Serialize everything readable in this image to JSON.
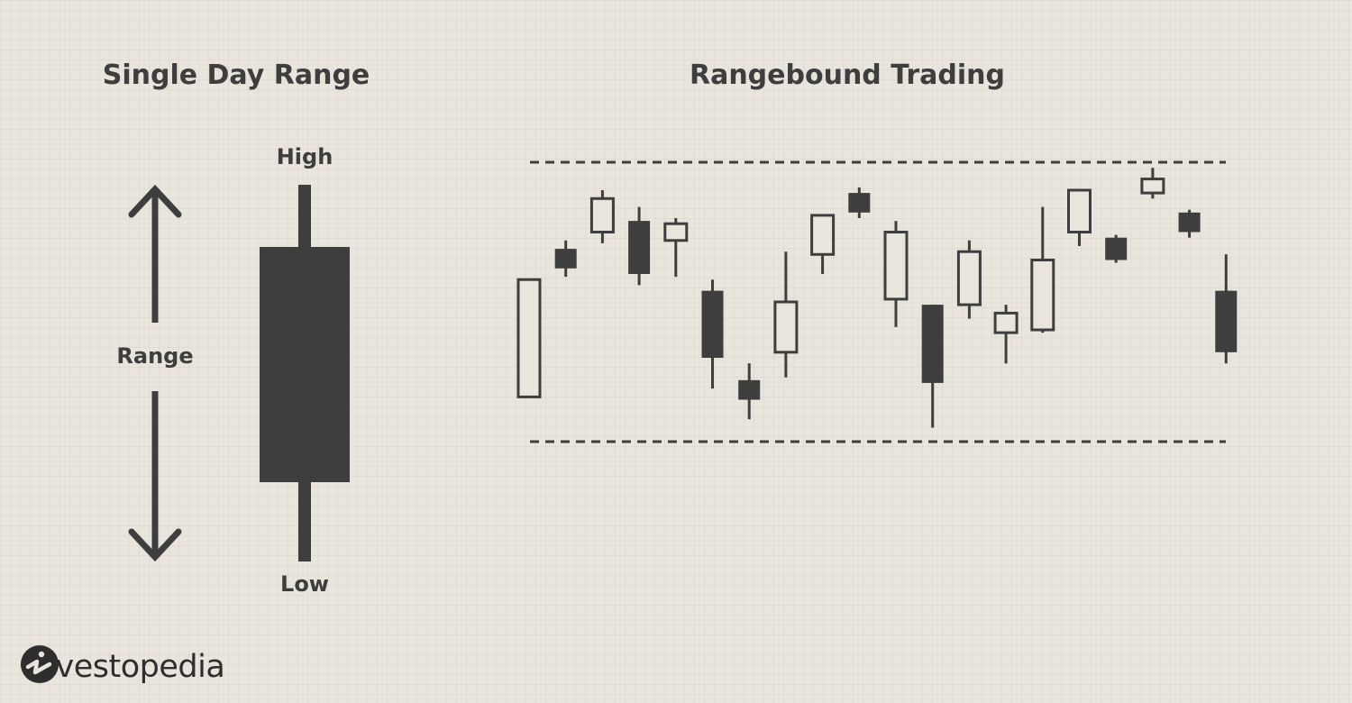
{
  "titles": {
    "left": "Single Day Range",
    "right": "Rangebound Trading"
  },
  "labels": {
    "high": "High",
    "low": "Low",
    "range": "Range"
  },
  "brand": {
    "logo_text": "Investopedia"
  },
  "colors": {
    "background": "#e9e5dd",
    "ink": "#3e3e3e"
  },
  "chart_data": {
    "type": "candlestick",
    "title": "Rangebound Trading",
    "resistance": 100,
    "support": 0,
    "candles": [
      {
        "open": 16,
        "close": 58,
        "high": 58,
        "low": 16,
        "direction": "up"
      },
      {
        "open": 69,
        "close": 62,
        "high": 72,
        "low": 59,
        "direction": "down"
      },
      {
        "open": 75,
        "close": 87,
        "high": 90,
        "low": 71,
        "direction": "up"
      },
      {
        "open": 79,
        "close": 60,
        "high": 84,
        "low": 56,
        "direction": "down"
      },
      {
        "open": 72,
        "close": 78,
        "high": 80,
        "low": 59,
        "direction": "up"
      },
      {
        "open": 54,
        "close": 30,
        "high": 58,
        "low": 19,
        "direction": "down"
      },
      {
        "open": 22,
        "close": 15,
        "high": 28,
        "low": 8,
        "direction": "down"
      },
      {
        "open": 32,
        "close": 50,
        "high": 68,
        "low": 23,
        "direction": "up"
      },
      {
        "open": 67,
        "close": 81,
        "high": 81,
        "low": 60,
        "direction": "up"
      },
      {
        "open": 89,
        "close": 82,
        "high": 91,
        "low": 80,
        "direction": "down"
      },
      {
        "open": 51,
        "close": 75,
        "high": 79,
        "low": 41,
        "direction": "up"
      },
      {
        "open": 49,
        "close": 21,
        "high": 49,
        "low": 5,
        "direction": "down"
      },
      {
        "open": 49,
        "close": 68,
        "high": 72,
        "low": 44,
        "direction": "up"
      },
      {
        "open": 39,
        "close": 46,
        "high": 49,
        "low": 28,
        "direction": "up"
      },
      {
        "open": 40,
        "close": 65,
        "high": 84,
        "low": 39,
        "direction": "up"
      },
      {
        "open": 75,
        "close": 90,
        "high": 90,
        "low": 70,
        "direction": "up"
      },
      {
        "open": 73,
        "close": 65,
        "high": 74,
        "low": 64,
        "direction": "down"
      },
      {
        "open": 89,
        "close": 94,
        "high": 98,
        "low": 87,
        "direction": "up"
      },
      {
        "open": 82,
        "close": 75,
        "high": 83,
        "low": 73,
        "direction": "down"
      },
      {
        "open": 54,
        "close": 32,
        "high": 67,
        "low": 28,
        "direction": "down"
      }
    ]
  }
}
